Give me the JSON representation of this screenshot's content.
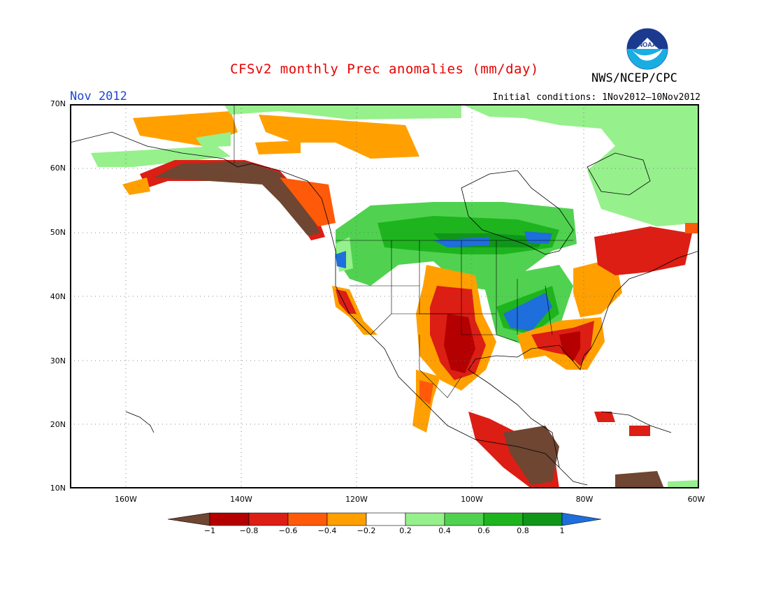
{
  "title": "CFSv2 monthly Prec anomalies (mm/day)",
  "month_label": "Nov 2012",
  "initial_conditions": "Initial conditions: 1Nov2012–10Nov2012",
  "agency": "NWS/NCEP/CPC",
  "logo_text": "NOAA",
  "lat_labels": [
    "70N",
    "60N",
    "50N",
    "40N",
    "30N",
    "20N",
    "10N"
  ],
  "lon_labels": [
    "160W",
    "140W",
    "120W",
    "100W",
    "80W",
    "60W"
  ],
  "colorbar": {
    "ticks": [
      "−1",
      "−0.8",
      "−0.6",
      "−0.4",
      "−0.2",
      "0.2",
      "0.4",
      "0.6",
      "0.8",
      "1"
    ],
    "colors": [
      "#6e4632",
      "#b40000",
      "#dc1e14",
      "#ff5a0a",
      "#ffa000",
      "#ffffff",
      "#96f08c",
      "#50d250",
      "#1eb41e",
      "#0f9619",
      "#1e6edc"
    ]
  },
  "legend_categories": [
    "< −1",
    "−1 to −0.8",
    "−0.8 to −0.6",
    "−0.6 to −0.4",
    "−0.4 to −0.2",
    "−0.2 to 0.2",
    "0.2 to 0.4",
    "0.4 to 0.6",
    "0.6 to 0.8",
    "0.8 to 1",
    "> 1"
  ]
}
